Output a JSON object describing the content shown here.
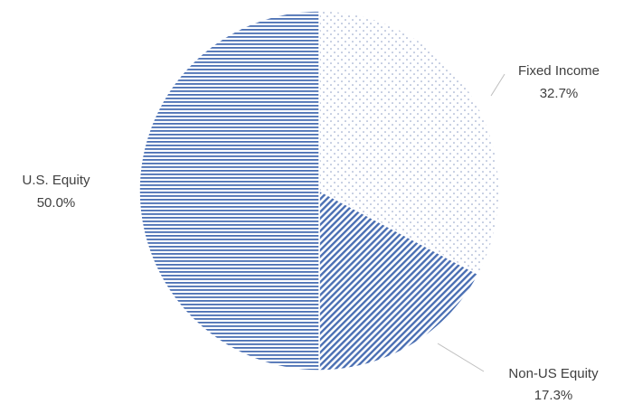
{
  "chart_data": {
    "type": "pie",
    "title": "",
    "slices": [
      {
        "label": "Fixed Income",
        "value": 32.7,
        "value_label": "32.7%",
        "pattern": "dots",
        "color": "#4a6fb3"
      },
      {
        "label": "Non-US Equity",
        "value": 17.3,
        "value_label": "17.3%",
        "pattern": "diagonal-stripes",
        "color": "#4a6fb3"
      },
      {
        "label": "U.S. Equity",
        "value": 50.0,
        "value_label": "50.0%",
        "pattern": "horizontal-stripes",
        "color": "#4a6fb3"
      }
    ],
    "start_angle": "12 o'clock",
    "direction": "clockwise",
    "legend": "none",
    "label_line_color": "#bfbfbf"
  }
}
